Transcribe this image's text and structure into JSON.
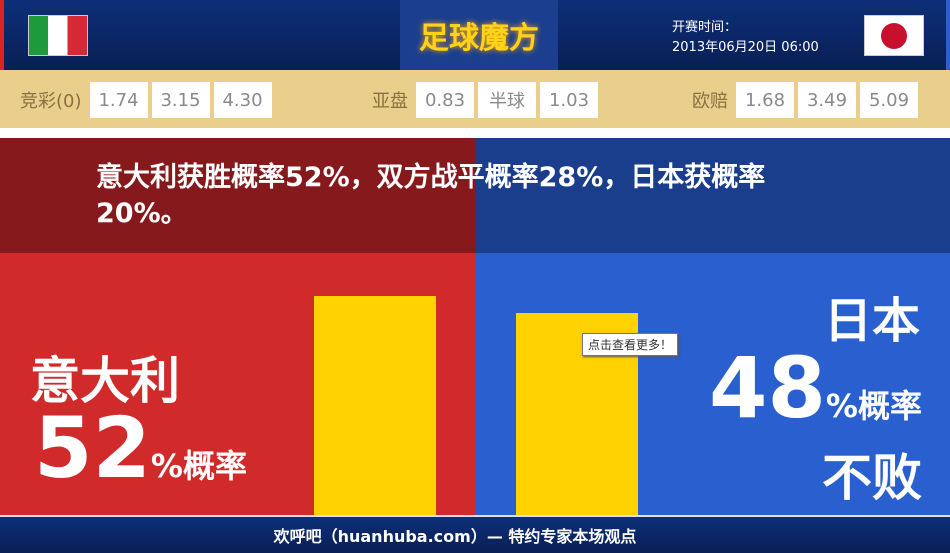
{
  "header": {
    "logo": "足球魔方",
    "kickoff_label": "开赛时间：",
    "kickoff_time": "2013年06月20日 06:00",
    "home_flag": "italy-flag-icon",
    "away_flag": "japan-flag-icon"
  },
  "odds": {
    "jingcai": {
      "label": "竞彩(0)",
      "values": [
        "1.74",
        "3.15",
        "4.30"
      ]
    },
    "asian": {
      "label": "亚盘",
      "values": [
        "0.83",
        "半球",
        "1.03"
      ]
    },
    "euro": {
      "label": "欧赔",
      "values": [
        "1.68",
        "3.49",
        "5.09"
      ]
    }
  },
  "headline": "意大利获胜概率52%，双方战平概率28%，日本获概率20%。",
  "home": {
    "name": "意大利",
    "percent": "52",
    "suffix": "%概率",
    "value": 52
  },
  "away": {
    "name": "日本",
    "percent": "48",
    "suffix": "%概率",
    "tail": "不败",
    "value": 48
  },
  "tooltip": "点击查看更多！",
  "footer": "欢呼吧（huanhuba.com）— 特约专家本场观点",
  "colors": {
    "home": "#d02a2a",
    "away": "#2a5fd0",
    "bar": "#ffd200",
    "odds_bg": "#e9cf8b"
  }
}
